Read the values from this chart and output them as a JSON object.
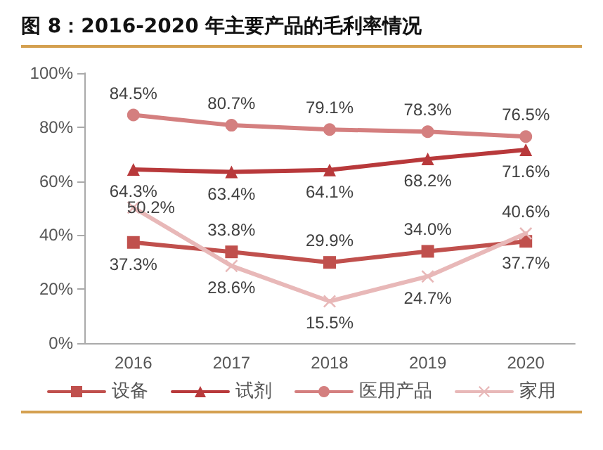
{
  "chart_data": {
    "type": "line",
    "title": "图 8：2016-2020 年主要产品的毛利率情况",
    "categories": [
      "2016",
      "2017",
      "2018",
      "2019",
      "2020"
    ],
    "series": [
      {
        "name": "设备",
        "color": "#c0504d",
        "marker": "square",
        "values": [
          37.3,
          33.8,
          29.9,
          34.0,
          37.7
        ],
        "value_labels": [
          "37.3%",
          "33.8%",
          "29.9%",
          "34.0%",
          "37.7%"
        ]
      },
      {
        "name": "试剂",
        "color": "#b8393b",
        "marker": "triangle",
        "values": [
          64.3,
          63.4,
          64.1,
          68.2,
          71.6
        ],
        "value_labels": [
          "64.3%",
          "63.4%",
          "64.1%",
          "68.2%",
          "71.6%"
        ]
      },
      {
        "name": "医用产品",
        "color": "#d47f7f",
        "marker": "circle",
        "values": [
          84.5,
          80.7,
          79.1,
          78.3,
          76.5
        ],
        "value_labels": [
          "84.5%",
          "80.7%",
          "79.1%",
          "78.3%",
          "76.5%"
        ]
      },
      {
        "name": "家用",
        "color": "#e8b8b8",
        "marker": "cross",
        "values": [
          50.2,
          28.6,
          15.5,
          24.7,
          40.6
        ],
        "value_labels": [
          "50.2%",
          "28.6%",
          "15.5%",
          "24.7%",
          "40.6%"
        ]
      }
    ],
    "ylim": [
      0,
      100
    ],
    "yticks": [
      {
        "value": 0,
        "label": "0%"
      },
      {
        "value": 20,
        "label": "20%"
      },
      {
        "value": 40,
        "label": "40%"
      },
      {
        "value": 60,
        "label": "60%"
      },
      {
        "value": 80,
        "label": "80%"
      },
      {
        "value": 100,
        "label": "100%"
      }
    ],
    "grid": false,
    "legend": "bottom",
    "line_style": "solid"
  }
}
